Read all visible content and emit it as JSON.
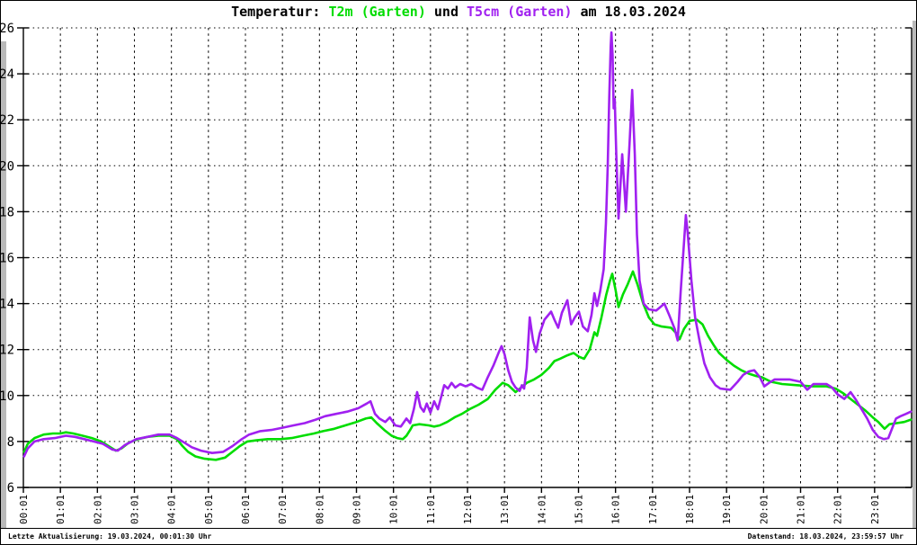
{
  "title": {
    "prefix": "Temperatur: ",
    "series1": "T2m (Garten)",
    "middle": " und ",
    "series2": "T5cm (Garten)",
    "suffix": " am 18.03.2024"
  },
  "footer": {
    "left": "Letzte Aktualisierung: 19.03.2024, 00:01:30 Uhr",
    "right": "Datenstand: 18.03.2024, 23:59:57 Uhr"
  },
  "colors": {
    "t2m": "#00dd00",
    "t5cm": "#a020f0",
    "axis": "#000000",
    "grid": "#000000",
    "background": "#ffffff"
  },
  "chart_data": {
    "type": "line",
    "title": "Temperatur: T2m (Garten) und T5cm (Garten) am 18.03.2024",
    "date": "18.03.2024",
    "xlabel": "",
    "ylabel": "",
    "grid": true,
    "legend_position": "in-title",
    "ylim": [
      6,
      26
    ],
    "yticks": [
      26,
      24,
      22,
      20,
      18,
      16,
      14,
      12,
      10,
      8,
      6
    ],
    "xlim_hours": [
      0,
      24
    ],
    "xlabels": [
      "00:01",
      "01:01",
      "02:01",
      "03:01",
      "04:01",
      "05:01",
      "06:01",
      "07:01",
      "08:01",
      "09:01",
      "10:01",
      "11:01",
      "12:01",
      "13:01",
      "14:01",
      "15:01",
      "16:01",
      "17:01",
      "18:01",
      "19:01",
      "20:01",
      "21:01",
      "22:01",
      "23:01"
    ],
    "series": [
      {
        "name": "T2m (Garten)",
        "color": "#00dd00",
        "points": [
          [
            0.02,
            7.55
          ],
          [
            0.12,
            7.9
          ],
          [
            0.3,
            8.15
          ],
          [
            0.55,
            8.3
          ],
          [
            0.8,
            8.35
          ],
          [
            1.0,
            8.35
          ],
          [
            1.15,
            8.4
          ],
          [
            1.35,
            8.35
          ],
          [
            1.6,
            8.25
          ],
          [
            1.85,
            8.15
          ],
          [
            2.1,
            8.0
          ],
          [
            2.3,
            7.8
          ],
          [
            2.5,
            7.6
          ],
          [
            2.65,
            7.7
          ],
          [
            2.85,
            7.95
          ],
          [
            3.1,
            8.1
          ],
          [
            3.35,
            8.2
          ],
          [
            3.65,
            8.25
          ],
          [
            3.95,
            8.25
          ],
          [
            4.15,
            8.1
          ],
          [
            4.3,
            7.8
          ],
          [
            4.45,
            7.55
          ],
          [
            4.65,
            7.35
          ],
          [
            4.9,
            7.25
          ],
          [
            5.2,
            7.2
          ],
          [
            5.45,
            7.3
          ],
          [
            5.65,
            7.55
          ],
          [
            5.85,
            7.8
          ],
          [
            6.05,
            8.0
          ],
          [
            6.3,
            8.05
          ],
          [
            6.6,
            8.1
          ],
          [
            6.95,
            8.1
          ],
          [
            7.25,
            8.15
          ],
          [
            7.55,
            8.25
          ],
          [
            7.85,
            8.35
          ],
          [
            8.1,
            8.45
          ],
          [
            8.4,
            8.55
          ],
          [
            8.7,
            8.7
          ],
          [
            9.0,
            8.85
          ],
          [
            9.25,
            9.0
          ],
          [
            9.4,
            9.05
          ],
          [
            9.55,
            8.8
          ],
          [
            9.75,
            8.5
          ],
          [
            9.95,
            8.25
          ],
          [
            10.1,
            8.15
          ],
          [
            10.25,
            8.1
          ],
          [
            10.35,
            8.25
          ],
          [
            10.45,
            8.5
          ],
          [
            10.52,
            8.7
          ],
          [
            10.7,
            8.75
          ],
          [
            10.95,
            8.7
          ],
          [
            11.1,
            8.65
          ],
          [
            11.25,
            8.7
          ],
          [
            11.45,
            8.85
          ],
          [
            11.65,
            9.05
          ],
          [
            11.85,
            9.2
          ],
          [
            12.05,
            9.4
          ],
          [
            12.3,
            9.6
          ],
          [
            12.55,
            9.85
          ],
          [
            12.75,
            10.25
          ],
          [
            12.95,
            10.55
          ],
          [
            13.1,
            10.45
          ],
          [
            13.3,
            10.15
          ],
          [
            13.45,
            10.35
          ],
          [
            13.6,
            10.55
          ],
          [
            13.8,
            10.7
          ],
          [
            14.0,
            10.9
          ],
          [
            14.2,
            11.2
          ],
          [
            14.35,
            11.5
          ],
          [
            14.5,
            11.6
          ],
          [
            14.7,
            11.75
          ],
          [
            14.87,
            11.85
          ],
          [
            15.0,
            11.7
          ],
          [
            15.15,
            11.6
          ],
          [
            15.3,
            12.0
          ],
          [
            15.43,
            12.75
          ],
          [
            15.5,
            12.6
          ],
          [
            15.62,
            13.4
          ],
          [
            15.75,
            14.4
          ],
          [
            15.85,
            15.0
          ],
          [
            15.91,
            15.3
          ],
          [
            16.0,
            14.6
          ],
          [
            16.08,
            13.85
          ],
          [
            16.2,
            14.4
          ],
          [
            16.33,
            14.85
          ],
          [
            16.47,
            15.4
          ],
          [
            16.6,
            14.8
          ],
          [
            16.75,
            14.0
          ],
          [
            16.9,
            13.4
          ],
          [
            17.05,
            13.1
          ],
          [
            17.25,
            13.0
          ],
          [
            17.5,
            12.95
          ],
          [
            17.65,
            12.7
          ],
          [
            17.73,
            12.45
          ],
          [
            17.85,
            12.9
          ],
          [
            18.0,
            13.25
          ],
          [
            18.2,
            13.3
          ],
          [
            18.35,
            13.1
          ],
          [
            18.5,
            12.6
          ],
          [
            18.65,
            12.2
          ],
          [
            18.8,
            11.85
          ],
          [
            19.0,
            11.55
          ],
          [
            19.2,
            11.3
          ],
          [
            19.4,
            11.1
          ],
          [
            19.6,
            10.95
          ],
          [
            19.8,
            10.85
          ],
          [
            19.95,
            10.8
          ],
          [
            20.2,
            10.6
          ],
          [
            20.5,
            10.5
          ],
          [
            20.9,
            10.45
          ],
          [
            21.3,
            10.4
          ],
          [
            21.7,
            10.4
          ],
          [
            21.95,
            10.3
          ],
          [
            22.15,
            10.1
          ],
          [
            22.35,
            9.85
          ],
          [
            22.55,
            9.6
          ],
          [
            22.75,
            9.35
          ],
          [
            22.95,
            9.05
          ],
          [
            23.1,
            8.85
          ],
          [
            23.27,
            8.55
          ],
          [
            23.4,
            8.75
          ],
          [
            23.6,
            8.8
          ],
          [
            23.8,
            8.85
          ],
          [
            23.98,
            8.95
          ]
        ]
      },
      {
        "name": "T5cm (Garten)",
        "color": "#a020f0",
        "points": [
          [
            0.02,
            7.35
          ],
          [
            0.12,
            7.7
          ],
          [
            0.3,
            8.0
          ],
          [
            0.55,
            8.1
          ],
          [
            0.85,
            8.15
          ],
          [
            1.15,
            8.25
          ],
          [
            1.4,
            8.2
          ],
          [
            1.65,
            8.1
          ],
          [
            1.9,
            8.0
          ],
          [
            2.15,
            7.9
          ],
          [
            2.4,
            7.65
          ],
          [
            2.55,
            7.6
          ],
          [
            2.75,
            7.85
          ],
          [
            3.05,
            8.1
          ],
          [
            3.35,
            8.2
          ],
          [
            3.65,
            8.3
          ],
          [
            3.95,
            8.3
          ],
          [
            4.15,
            8.15
          ],
          [
            4.35,
            7.95
          ],
          [
            4.55,
            7.75
          ],
          [
            4.8,
            7.6
          ],
          [
            5.1,
            7.5
          ],
          [
            5.4,
            7.55
          ],
          [
            5.65,
            7.8
          ],
          [
            5.9,
            8.1
          ],
          [
            6.1,
            8.3
          ],
          [
            6.4,
            8.45
          ],
          [
            6.7,
            8.5
          ],
          [
            7.0,
            8.6
          ],
          [
            7.3,
            8.7
          ],
          [
            7.6,
            8.8
          ],
          [
            7.9,
            8.95
          ],
          [
            8.15,
            9.1
          ],
          [
            8.45,
            9.2
          ],
          [
            8.75,
            9.3
          ],
          [
            9.05,
            9.45
          ],
          [
            9.28,
            9.65
          ],
          [
            9.38,
            9.75
          ],
          [
            9.5,
            9.2
          ],
          [
            9.62,
            9.0
          ],
          [
            9.78,
            8.85
          ],
          [
            9.9,
            9.05
          ],
          [
            10.05,
            8.7
          ],
          [
            10.2,
            8.65
          ],
          [
            10.35,
            9.0
          ],
          [
            10.45,
            8.8
          ],
          [
            10.55,
            9.4
          ],
          [
            10.64,
            10.15
          ],
          [
            10.73,
            9.5
          ],
          [
            10.82,
            9.3
          ],
          [
            10.9,
            9.65
          ],
          [
            11.0,
            9.25
          ],
          [
            11.1,
            9.75
          ],
          [
            11.2,
            9.4
          ],
          [
            11.37,
            10.45
          ],
          [
            11.47,
            10.3
          ],
          [
            11.57,
            10.55
          ],
          [
            11.67,
            10.35
          ],
          [
            11.8,
            10.5
          ],
          [
            11.95,
            10.4
          ],
          [
            12.1,
            10.5
          ],
          [
            12.25,
            10.35
          ],
          [
            12.4,
            10.25
          ],
          [
            12.55,
            10.8
          ],
          [
            12.7,
            11.3
          ],
          [
            12.85,
            11.9
          ],
          [
            12.92,
            12.15
          ],
          [
            13.0,
            11.8
          ],
          [
            13.1,
            11.1
          ],
          [
            13.2,
            10.6
          ],
          [
            13.3,
            10.35
          ],
          [
            13.41,
            10.2
          ],
          [
            13.47,
            10.45
          ],
          [
            13.53,
            10.3
          ],
          [
            13.6,
            11.2
          ],
          [
            13.68,
            13.4
          ],
          [
            13.77,
            12.4
          ],
          [
            13.85,
            11.9
          ],
          [
            13.95,
            12.7
          ],
          [
            14.08,
            13.3
          ],
          [
            14.26,
            13.65
          ],
          [
            14.35,
            13.3
          ],
          [
            14.45,
            12.95
          ],
          [
            14.55,
            13.6
          ],
          [
            14.7,
            14.15
          ],
          [
            14.8,
            13.1
          ],
          [
            14.9,
            13.4
          ],
          [
            15.01,
            13.65
          ],
          [
            15.12,
            13.0
          ],
          [
            15.25,
            12.8
          ],
          [
            15.35,
            13.5
          ],
          [
            15.43,
            14.45
          ],
          [
            15.5,
            13.9
          ],
          [
            15.58,
            14.5
          ],
          [
            15.68,
            15.5
          ],
          [
            15.74,
            17.5
          ],
          [
            15.79,
            20.0
          ],
          [
            15.83,
            23.0
          ],
          [
            15.87,
            25.2
          ],
          [
            15.89,
            25.8
          ],
          [
            15.92,
            24.8
          ],
          [
            15.95,
            22.5
          ],
          [
            15.98,
            22.9
          ],
          [
            16.02,
            20.5
          ],
          [
            16.08,
            17.7
          ],
          [
            16.18,
            20.5
          ],
          [
            16.28,
            18.0
          ],
          [
            16.38,
            21.0
          ],
          [
            16.45,
            23.3
          ],
          [
            16.52,
            20.5
          ],
          [
            16.58,
            17.0
          ],
          [
            16.65,
            15.0
          ],
          [
            16.76,
            14.0
          ],
          [
            16.9,
            13.75
          ],
          [
            17.1,
            13.7
          ],
          [
            17.32,
            14.0
          ],
          [
            17.45,
            13.5
          ],
          [
            17.6,
            12.9
          ],
          [
            17.68,
            12.4
          ],
          [
            17.76,
            14.5
          ],
          [
            17.9,
            17.85
          ],
          [
            17.95,
            17.1
          ],
          [
            18.05,
            15.0
          ],
          [
            18.15,
            13.4
          ],
          [
            18.28,
            12.3
          ],
          [
            18.4,
            11.4
          ],
          [
            18.55,
            10.8
          ],
          [
            18.7,
            10.45
          ],
          [
            18.83,
            10.3
          ],
          [
            19.1,
            10.25
          ],
          [
            19.3,
            10.6
          ],
          [
            19.45,
            10.9
          ],
          [
            19.6,
            11.05
          ],
          [
            19.75,
            11.1
          ],
          [
            19.9,
            10.8
          ],
          [
            20.02,
            10.4
          ],
          [
            20.15,
            10.55
          ],
          [
            20.3,
            10.7
          ],
          [
            20.7,
            10.7
          ],
          [
            21.0,
            10.6
          ],
          [
            21.18,
            10.25
          ],
          [
            21.35,
            10.5
          ],
          [
            21.7,
            10.5
          ],
          [
            21.85,
            10.35
          ],
          [
            22.0,
            10.05
          ],
          [
            22.18,
            9.85
          ],
          [
            22.35,
            10.15
          ],
          [
            22.5,
            9.8
          ],
          [
            22.65,
            9.4
          ],
          [
            22.8,
            9.0
          ],
          [
            22.95,
            8.5
          ],
          [
            23.1,
            8.2
          ],
          [
            23.25,
            8.1
          ],
          [
            23.37,
            8.15
          ],
          [
            23.48,
            8.6
          ],
          [
            23.58,
            9.0
          ],
          [
            23.7,
            9.1
          ],
          [
            23.85,
            9.2
          ],
          [
            23.98,
            9.3
          ]
        ]
      }
    ]
  }
}
